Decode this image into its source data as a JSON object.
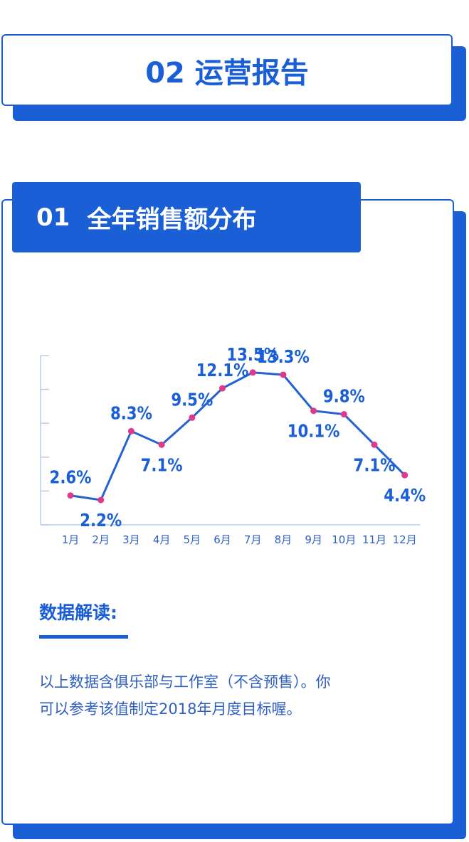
{
  "header": {
    "title": "02 运营报告"
  },
  "section": {
    "number": "01",
    "title": "全年销售额分布"
  },
  "chart_data": {
    "type": "line",
    "categories": [
      "1月",
      "2月",
      "3月",
      "4月",
      "5月",
      "6月",
      "7月",
      "8月",
      "9月",
      "10月",
      "11月",
      "12月"
    ],
    "series": [
      {
        "name": null,
        "color": "#2462d2",
        "values": [
          2.6,
          2.2,
          8.3,
          7.1,
          9.5,
          12.1,
          13.5,
          13.3,
          10.1,
          9.8,
          7.1,
          4.4
        ],
        "value_labels": [
          "2.6%",
          "2.2%",
          "8.3%",
          "7.1%",
          "9.5%",
          "12.1%",
          "13.5%",
          "13.3%",
          "10.1%",
          "9.8%",
          "7.1%",
          "4.4%"
        ]
      }
    ],
    "marker_color": "#e0388a",
    "ylim": [
      0,
      15
    ],
    "yticks": [
      0,
      3,
      6,
      9,
      12,
      15
    ]
  },
  "notes": {
    "heading": "数据解读:",
    "lines": [
      "以上数据含俱乐部与工作室（不含预售）。你",
      "可以参考该值制定2018年月度目标喔。"
    ]
  }
}
